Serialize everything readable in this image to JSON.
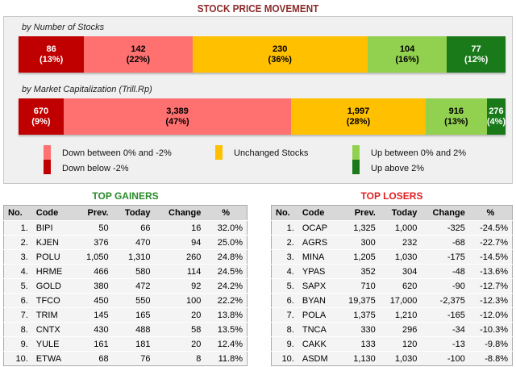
{
  "title": "STOCK PRICE MOVEMENT",
  "colors": {
    "down_below": "#c00000",
    "down_between": "#ff7070",
    "unchanged": "#ffc000",
    "up_between": "#92d050",
    "up_above": "#1a7a1a"
  },
  "by_stocks": {
    "label": "by Number of Stocks",
    "segments": [
      {
        "value": "86",
        "pct": "(13%)",
        "n": 86,
        "color": "#c00000",
        "text": "#fff"
      },
      {
        "value": "142",
        "pct": "(22%)",
        "n": 142,
        "color": "#ff7070",
        "text": "#000"
      },
      {
        "value": "230",
        "pct": "(36%)",
        "n": 230,
        "color": "#ffc000",
        "text": "#000"
      },
      {
        "value": "104",
        "pct": "(16%)",
        "n": 104,
        "color": "#92d050",
        "text": "#000"
      },
      {
        "value": "77",
        "pct": "(12%)",
        "n": 77,
        "color": "#1a7a1a",
        "text": "#fff"
      }
    ]
  },
  "by_cap": {
    "label": "by Market Capitalization (Trill.Rp)",
    "segments": [
      {
        "value": "670",
        "pct": "(9%)",
        "n": 670,
        "color": "#c00000",
        "text": "#fff"
      },
      {
        "value": "3,389",
        "pct": "(47%)",
        "n": 3389,
        "color": "#ff7070",
        "text": "#000"
      },
      {
        "value": "1,997",
        "pct": "(28%)",
        "n": 1997,
        "color": "#ffc000",
        "text": "#000"
      },
      {
        "value": "916",
        "pct": "(13%)",
        "n": 916,
        "color": "#92d050",
        "text": "#000"
      },
      {
        "value": "276",
        "pct": "(4%)",
        "n": 276,
        "color": "#1a7a1a",
        "text": "#fff"
      }
    ]
  },
  "legend": {
    "down_between": "Down between 0% and -2%",
    "down_below": "Down below -2%",
    "unchanged": "Unchanged Stocks",
    "up_between": "Up between 0% and 2%",
    "up_above": "Up above 2%"
  },
  "columns": [
    "No.",
    "Code",
    "Prev.",
    "Today",
    "Change",
    "%"
  ],
  "gainers": {
    "title": "TOP GAINERS",
    "rows": [
      [
        "1.",
        "BIPI",
        "50",
        "66",
        "16",
        "32.0%"
      ],
      [
        "2.",
        "KJEN",
        "376",
        "470",
        "94",
        "25.0%"
      ],
      [
        "3.",
        "POLU",
        "1,050",
        "1,310",
        "260",
        "24.8%"
      ],
      [
        "4.",
        "HRME",
        "466",
        "580",
        "114",
        "24.5%"
      ],
      [
        "5.",
        "GOLD",
        "380",
        "472",
        "92",
        "24.2%"
      ],
      [
        "6.",
        "TFCO",
        "450",
        "550",
        "100",
        "22.2%"
      ],
      [
        "7.",
        "TRIM",
        "145",
        "165",
        "20",
        "13.8%"
      ],
      [
        "8.",
        "CNTX",
        "430",
        "488",
        "58",
        "13.5%"
      ],
      [
        "9.",
        "YULE",
        "161",
        "181",
        "20",
        "12.4%"
      ],
      [
        "10.",
        "ETWA",
        "68",
        "76",
        "8",
        "11.8%"
      ]
    ]
  },
  "losers": {
    "title": "TOP LOSERS",
    "rows": [
      [
        "1.",
        "OCAP",
        "1,325",
        "1,000",
        "-325",
        "-24.5%"
      ],
      [
        "2.",
        "AGRS",
        "300",
        "232",
        "-68",
        "-22.7%"
      ],
      [
        "3.",
        "MINA",
        "1,205",
        "1,030",
        "-175",
        "-14.5%"
      ],
      [
        "4.",
        "YPAS",
        "352",
        "304",
        "-48",
        "-13.6%"
      ],
      [
        "5.",
        "SAPX",
        "710",
        "620",
        "-90",
        "-12.7%"
      ],
      [
        "6.",
        "BYAN",
        "19,375",
        "17,000",
        "-2,375",
        "-12.3%"
      ],
      [
        "7.",
        "POLA",
        "1,375",
        "1,210",
        "-165",
        "-12.0%"
      ],
      [
        "8.",
        "TNCA",
        "330",
        "296",
        "-34",
        "-10.3%"
      ],
      [
        "9.",
        "CAKK",
        "133",
        "120",
        "-13",
        "-9.8%"
      ],
      [
        "10.",
        "ASDM",
        "1,130",
        "1,030",
        "-100",
        "-8.8%"
      ]
    ]
  }
}
